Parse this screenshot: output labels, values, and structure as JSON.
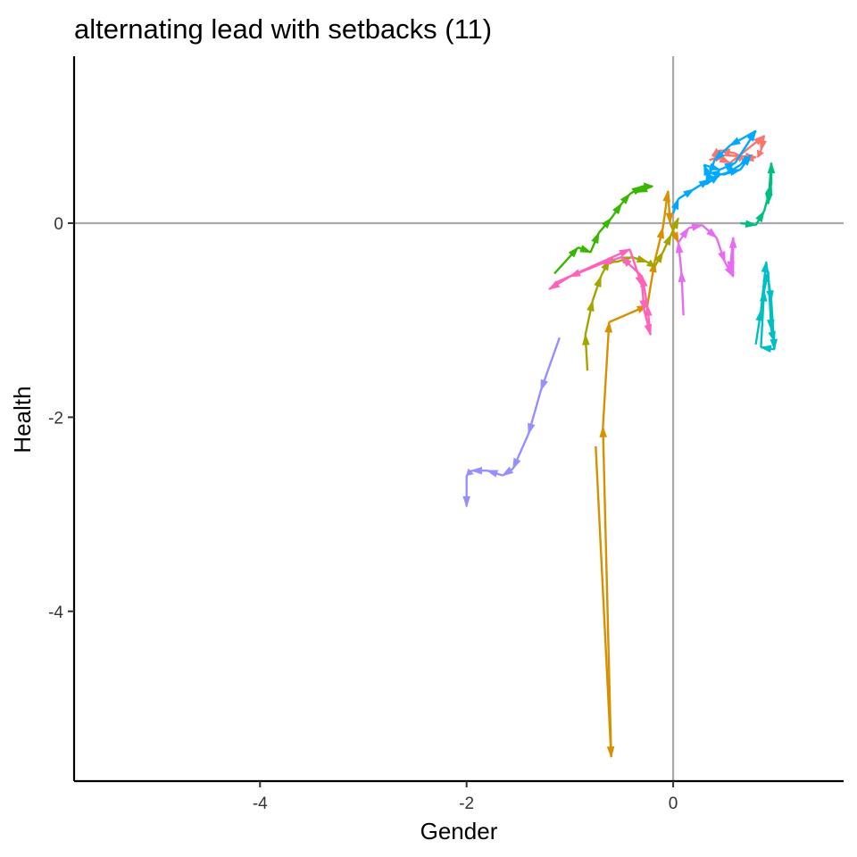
{
  "chart_data": {
    "type": "line",
    "title": "alternating lead with setbacks (11)",
    "xlabel": "Gender",
    "ylabel": "Health",
    "xlim": [
      -5.8,
      1.65
    ],
    "ylim": [
      -5.75,
      1.72
    ],
    "x_ticks": [
      {
        "value": -4,
        "label": "-4"
      },
      {
        "value": -2,
        "label": "-2"
      },
      {
        "value": 0,
        "label": "0"
      }
    ],
    "y_ticks": [
      {
        "value": -4,
        "label": "-4"
      },
      {
        "value": -2,
        "label": "-2"
      },
      {
        "value": 0,
        "label": "0"
      }
    ],
    "reference_lines": {
      "x": 0,
      "y": 0
    },
    "grid": false,
    "legend": "none",
    "arrows": true,
    "series": [
      {
        "color": "#F8766D",
        "points": [
          [
            0.35,
            0.65
          ],
          [
            0.5,
            0.7
          ],
          [
            0.8,
            0.68
          ],
          [
            0.68,
            0.65
          ],
          [
            0.6,
            0.72
          ],
          [
            0.45,
            0.75
          ],
          [
            0.38,
            0.7
          ],
          [
            0.55,
            0.62
          ],
          [
            0.88,
            0.9
          ],
          [
            0.85,
            0.75
          ],
          [
            0.82,
            0.68
          ]
        ]
      },
      {
        "color": "#D89000",
        "points": [
          [
            -0.75,
            -2.3
          ],
          [
            -0.6,
            -5.5
          ],
          [
            -0.68,
            -2.1
          ],
          [
            -0.62,
            -1.02
          ],
          [
            -0.25,
            -0.85
          ],
          [
            -0.18,
            -0.4
          ],
          [
            -0.1,
            -0.05
          ],
          [
            -0.05,
            0.33
          ],
          [
            -0.03,
            0.0
          ],
          [
            0.05,
            -0.2
          ]
        ]
      },
      {
        "color": "#A3A500",
        "points": [
          [
            -0.83,
            -1.52
          ],
          [
            -0.85,
            -1.15
          ],
          [
            -0.78,
            -0.8
          ],
          [
            -0.7,
            -0.55
          ],
          [
            -0.62,
            -0.38
          ],
          [
            -0.55,
            -0.4
          ],
          [
            -0.4,
            -0.35
          ],
          [
            -0.25,
            -0.4
          ],
          [
            -0.18,
            -0.45
          ],
          [
            -0.1,
            -0.3
          ],
          [
            -0.02,
            -0.12
          ],
          [
            0.05,
            0.05
          ]
        ]
      },
      {
        "color": "#39B600",
        "points": [
          [
            -1.15,
            -0.52
          ],
          [
            -0.92,
            -0.25
          ],
          [
            -0.8,
            -0.3
          ],
          [
            -0.72,
            -0.1
          ],
          [
            -0.6,
            0.05
          ],
          [
            -0.5,
            0.2
          ],
          [
            -0.42,
            0.3
          ],
          [
            -0.3,
            0.38
          ],
          [
            -0.2,
            0.38
          ],
          [
            -0.35,
            0.32
          ]
        ]
      },
      {
        "color": "#00BF7D",
        "points": [
          [
            0.65,
            0.0
          ],
          [
            0.8,
            -0.02
          ],
          [
            0.88,
            0.12
          ],
          [
            0.95,
            0.4
          ],
          [
            0.95,
            0.62
          ],
          [
            0.92,
            0.2
          ]
        ]
      },
      {
        "color": "#00BFC4",
        "points": [
          [
            0.8,
            -1.25
          ],
          [
            0.85,
            -0.9
          ],
          [
            0.9,
            -0.4
          ],
          [
            0.95,
            -0.8
          ],
          [
            0.98,
            -1.3
          ],
          [
            0.85,
            -1.28
          ],
          [
            0.88,
            -0.7
          ],
          [
            0.92,
            -0.5
          ],
          [
            0.95,
            -1.1
          ],
          [
            0.98,
            -1.22
          ]
        ]
      },
      {
        "color": "#00A9FF",
        "points": [
          [
            0.0,
            0.1
          ],
          [
            0.05,
            0.25
          ],
          [
            0.2,
            0.35
          ],
          [
            0.35,
            0.45
          ],
          [
            0.3,
            0.6
          ],
          [
            0.45,
            0.55
          ],
          [
            0.6,
            0.62
          ],
          [
            0.8,
            0.95
          ],
          [
            0.55,
            0.8
          ],
          [
            0.4,
            0.65
          ],
          [
            0.32,
            0.4
          ],
          [
            0.45,
            0.5
          ],
          [
            0.65,
            0.55
          ],
          [
            0.75,
            0.7
          ],
          [
            0.65,
            0.6
          ],
          [
            0.5,
            0.5
          ],
          [
            0.35,
            0.52
          ]
        ]
      },
      {
        "color": "#9590FF",
        "points": [
          [
            -1.1,
            -1.18
          ],
          [
            -1.28,
            -1.72
          ],
          [
            -1.4,
            -2.17
          ],
          [
            -1.55,
            -2.53
          ],
          [
            -1.65,
            -2.6
          ],
          [
            -1.8,
            -2.55
          ],
          [
            -1.95,
            -2.55
          ],
          [
            -2.0,
            -2.6
          ],
          [
            -2.0,
            -2.92
          ]
        ]
      },
      {
        "color": "#E76BF3",
        "points": [
          [
            0.1,
            -0.95
          ],
          [
            0.08,
            -0.5
          ],
          [
            0.05,
            -0.2
          ],
          [
            0.15,
            -0.05
          ],
          [
            0.28,
            -0.02
          ],
          [
            0.42,
            -0.15
          ],
          [
            0.5,
            -0.4
          ],
          [
            0.58,
            -0.55
          ],
          [
            0.58,
            -0.15
          ],
          [
            0.55,
            -0.5
          ]
        ]
      },
      {
        "color": "#FF62BC",
        "points": [
          [
            -1.15,
            -0.62
          ],
          [
            -0.42,
            -0.27
          ],
          [
            -0.3,
            -0.65
          ],
          [
            -0.28,
            -0.9
          ],
          [
            -0.22,
            -1.15
          ],
          [
            -0.25,
            -0.85
          ],
          [
            -0.3,
            -0.55
          ],
          [
            -0.5,
            -0.35
          ],
          [
            -0.7,
            -0.42
          ],
          [
            -1.0,
            -0.55
          ],
          [
            -1.2,
            -0.68
          ]
        ]
      }
    ]
  }
}
